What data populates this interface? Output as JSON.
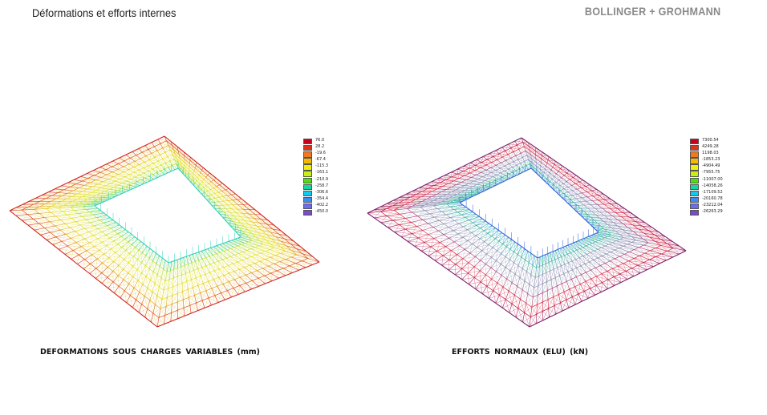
{
  "header": {
    "title": "Déformations et efforts internes",
    "company": "BOLLINGER + GROHMANN"
  },
  "panels": [
    {
      "caption": "DEFORMATIONS SOUS CHARGES VARIABLES (mm)",
      "legend": {
        "values": [
          "76.0",
          "28.2",
          "-19.6",
          "-67.4",
          "-115.3",
          "-163.1",
          "-210.9",
          "-258.7",
          "-306.6",
          "-354.4",
          "-402.2",
          "-450.0"
        ],
        "colors": [
          "#c8001a",
          "#e3301a",
          "#f07820",
          "#f5b800",
          "#eeee10",
          "#c8ee18",
          "#50dd10",
          "#10d8a0",
          "#10c8f0",
          "#3c8cf0",
          "#6c6cf0",
          "#7a4cc8"
        ]
      }
    },
    {
      "caption": "EFFORTS NORMAUX (ELU) (kN)",
      "legend": {
        "values": [
          "7300.54",
          "4249.28",
          "1198.03",
          "-1853.23",
          "-4904.49",
          "-7955.75",
          "-11007.00",
          "-14058.26",
          "-17109.52",
          "-20160.78",
          "-23212.04",
          "-26263.29"
        ],
        "colors": [
          "#c8001a",
          "#e3301a",
          "#f07820",
          "#f5b800",
          "#eeee10",
          "#c8ee18",
          "#50dd10",
          "#10d8a0",
          "#10c8f0",
          "#3c8cf0",
          "#6c6cf0",
          "#7a4cc8"
        ]
      }
    }
  ]
}
